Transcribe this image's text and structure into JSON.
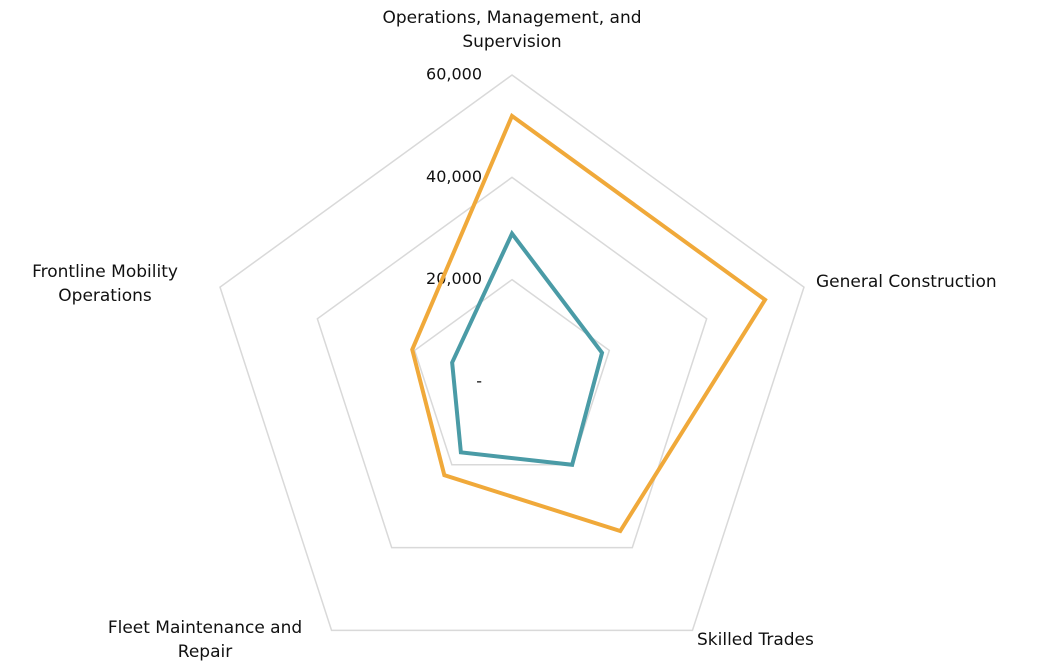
{
  "chart_data": {
    "type": "radar",
    "categories": [
      "Operations, Management, and Supervision",
      "General Construction",
      "Skilled Trades",
      "Fleet Maintenance and Repair",
      "Frontline Mobility Operations"
    ],
    "series": [
      {
        "color": "#f0a93a",
        "values": [
          52000,
          52000,
          36000,
          22500,
          20500
        ]
      },
      {
        "color": "#4a9ba6",
        "values": [
          29000,
          18500,
          20000,
          17000,
          12300
        ]
      }
    ],
    "ylim": [
      0,
      60000
    ],
    "yticks": [
      {
        "value": 0,
        "label": "-"
      },
      {
        "value": 20000,
        "label": "20,000"
      },
      {
        "value": 40000,
        "label": "40,000"
      },
      {
        "value": 60000,
        "label": "60,000"
      }
    ],
    "grid": true
  }
}
